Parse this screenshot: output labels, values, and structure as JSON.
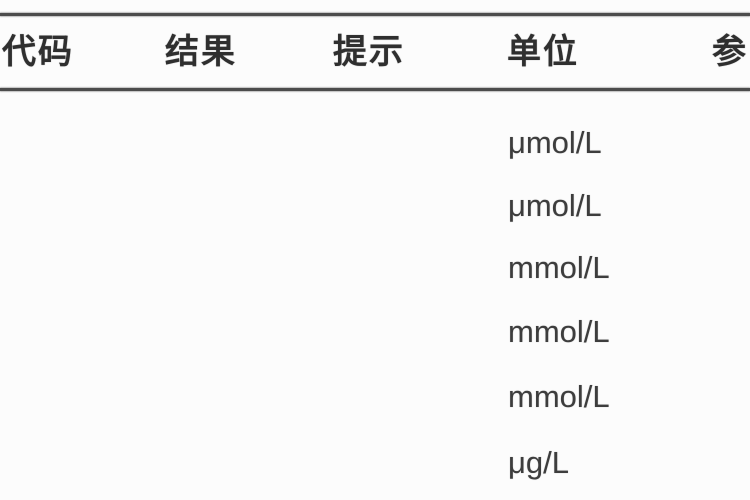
{
  "table": {
    "columns": [
      {
        "label": "代码"
      },
      {
        "label": "结果"
      },
      {
        "label": "提示"
      },
      {
        "label": "单位"
      },
      {
        "label": "参"
      }
    ],
    "rows": [
      {
        "unit": "μmol/L"
      },
      {
        "unit": "μmol/L"
      },
      {
        "unit": "mmol/L"
      },
      {
        "unit": "mmol/L"
      },
      {
        "unit": "mmol/L"
      },
      {
        "unit": "μg/L"
      }
    ]
  },
  "colors": {
    "background": "#fcfcfc",
    "rule": "#4c4c4c",
    "header_text": "#2f2f2f",
    "unit_text": "#3d3d3d"
  }
}
